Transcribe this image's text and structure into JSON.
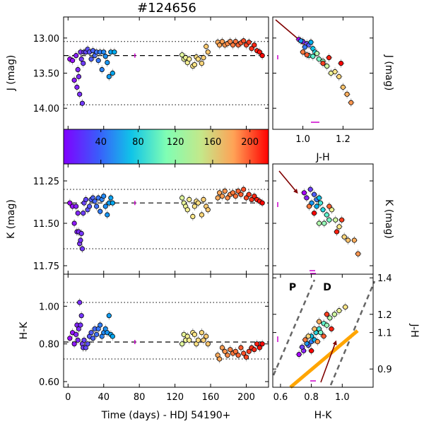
{
  "title": "#124656",
  "colorbar": {
    "ticks": [
      "40",
      "80",
      "120",
      "160",
      "200"
    ],
    "range": [
      0,
      220
    ],
    "cmap": "rainbow"
  },
  "chart_data": [
    {
      "id": "j_lc",
      "type": "scatter",
      "xlabel": "",
      "ylabel": "J (mag)",
      "xlim": [
        -5,
        225
      ],
      "ylim": [
        14.3,
        12.7
      ],
      "inverted_y": true,
      "yticks": [
        "13.00",
        "13.50",
        "14.00"
      ],
      "mean": 13.25,
      "bounds": [
        13.05,
        13.95
      ],
      "errorbar": {
        "x": 75,
        "y": 13.25
      },
      "points": [
        [
          2,
          13.3
        ],
        [
          5,
          13.32
        ],
        [
          7,
          13.6
        ],
        [
          9,
          13.25
        ],
        [
          10,
          13.7
        ],
        [
          11,
          13.45
        ],
        [
          12,
          13.55
        ],
        [
          13,
          13.8
        ],
        [
          14,
          13.2
        ],
        [
          15,
          13.3
        ],
        [
          16,
          13.93
        ],
        [
          17,
          13.36
        ],
        [
          18,
          13.2
        ],
        [
          20,
          13.2
        ],
        [
          22,
          13.16
        ],
        [
          24,
          13.2
        ],
        [
          26,
          13.3
        ],
        [
          28,
          13.18
        ],
        [
          30,
          13.25
        ],
        [
          32,
          13.2
        ],
        [
          34,
          13.32
        ],
        [
          36,
          13.2
        ],
        [
          38,
          13.45
        ],
        [
          40,
          13.2
        ],
        [
          42,
          13.26
        ],
        [
          44,
          13.35
        ],
        [
          46,
          13.55
        ],
        [
          48,
          13.2
        ],
        [
          50,
          13.5
        ],
        [
          52,
          13.2
        ],
        [
          128,
          13.24
        ],
        [
          130,
          13.3
        ],
        [
          132,
          13.28
        ],
        [
          134,
          13.35
        ],
        [
          136,
          13.3
        ],
        [
          140,
          13.4
        ],
        [
          142,
          13.38
        ],
        [
          144,
          13.27
        ],
        [
          146,
          13.3
        ],
        [
          150,
          13.36
        ],
        [
          152,
          13.28
        ],
        [
          155,
          13.12
        ],
        [
          157,
          13.2
        ],
        [
          168,
          13.06
        ],
        [
          170,
          13.1
        ],
        [
          173,
          13.05
        ],
        [
          176,
          13.1
        ],
        [
          179,
          13.08
        ],
        [
          182,
          13.05
        ],
        [
          185,
          13.1
        ],
        [
          188,
          13.05
        ],
        [
          191,
          13.1
        ],
        [
          194,
          13.07
        ],
        [
          197,
          13.04
        ],
        [
          200,
          13.1
        ],
        [
          203,
          13.06
        ],
        [
          206,
          13.15
        ],
        [
          209,
          13.1
        ],
        [
          212,
          13.18
        ],
        [
          215,
          13.2
        ],
        [
          218,
          13.25
        ]
      ]
    },
    {
      "id": "j_cmd",
      "type": "scatter",
      "xlabel": "J-H",
      "ylabel": "J (mag)",
      "xlim": [
        0.85,
        1.35
      ],
      "ylim": [
        14.3,
        12.7
      ],
      "inverted_y": true,
      "xticks": [
        "1.0",
        "1.2"
      ],
      "points": [
        [
          0.98,
          13.02
        ],
        [
          1.0,
          13.05
        ],
        [
          1.02,
          13.08
        ],
        [
          1.03,
          13.1
        ],
        [
          1.01,
          13.13
        ],
        [
          0.99,
          13.04
        ],
        [
          1.04,
          13.06
        ],
        [
          1.05,
          13.15
        ],
        [
          1.06,
          13.2
        ],
        [
          1.03,
          13.25
        ],
        [
          1.05,
          13.26
        ],
        [
          1.08,
          13.3
        ],
        [
          1.1,
          13.33
        ],
        [
          1.07,
          13.22
        ],
        [
          1.12,
          13.4
        ],
        [
          1.14,
          13.5
        ],
        [
          1.16,
          13.48
        ],
        [
          1.18,
          13.55
        ],
        [
          1.2,
          13.7
        ],
        [
          1.22,
          13.8
        ],
        [
          1.24,
          13.92
        ],
        [
          1.0,
          13.2
        ],
        [
          1.02,
          13.24
        ],
        [
          1.1,
          13.36
        ],
        [
          1.13,
          13.28
        ],
        [
          1.19,
          13.36
        ]
      ]
    },
    {
      "id": "k_lc",
      "type": "scatter",
      "xlabel": "",
      "ylabel": "K (mag)",
      "xlim": [
        -5,
        225
      ],
      "ylim": [
        11.8,
        11.15
      ],
      "inverted_y": true,
      "yticks": [
        "11.25",
        "11.50",
        "11.75"
      ],
      "mean": 11.38,
      "bounds": [
        11.3,
        11.65
      ],
      "errorbar": {
        "x": 75,
        "y": 11.38
      },
      "points": [
        [
          2,
          11.38
        ],
        [
          5,
          11.4
        ],
        [
          7,
          11.5
        ],
        [
          9,
          11.4
        ],
        [
          10,
          11.55
        ],
        [
          11,
          11.44
        ],
        [
          12,
          11.55
        ],
        [
          13,
          11.62
        ],
        [
          14,
          11.6
        ],
        [
          15,
          11.56
        ],
        [
          16,
          11.65
        ],
        [
          17,
          11.44
        ],
        [
          18,
          11.38
        ],
        [
          20,
          11.36
        ],
        [
          22,
          11.42
        ],
        [
          24,
          11.4
        ],
        [
          26,
          11.36
        ],
        [
          28,
          11.35
        ],
        [
          30,
          11.37
        ],
        [
          32,
          11.4
        ],
        [
          34,
          11.35
        ],
        [
          36,
          11.43
        ],
        [
          38,
          11.36
        ],
        [
          40,
          11.34
        ],
        [
          42,
          11.4
        ],
        [
          44,
          11.45
        ],
        [
          46,
          11.38
        ],
        [
          48,
          11.35
        ],
        [
          50,
          11.38
        ],
        [
          128,
          11.35
        ],
        [
          130,
          11.38
        ],
        [
          132,
          11.4
        ],
        [
          134,
          11.42
        ],
        [
          136,
          11.36
        ],
        [
          140,
          11.46
        ],
        [
          142,
          11.4
        ],
        [
          144,
          11.37
        ],
        [
          146,
          11.38
        ],
        [
          150,
          11.45
        ],
        [
          152,
          11.36
        ],
        [
          155,
          11.4
        ],
        [
          157,
          11.42
        ],
        [
          168,
          11.35
        ],
        [
          170,
          11.32
        ],
        [
          173,
          11.34
        ],
        [
          176,
          11.31
        ],
        [
          179,
          11.35
        ],
        [
          182,
          11.33
        ],
        [
          185,
          11.32
        ],
        [
          188,
          11.34
        ],
        [
          191,
          11.31
        ],
        [
          194,
          11.33
        ],
        [
          197,
          11.3
        ],
        [
          200,
          11.35
        ],
        [
          203,
          11.33
        ],
        [
          206,
          11.36
        ],
        [
          209,
          11.34
        ],
        [
          212,
          11.36
        ],
        [
          215,
          11.37
        ],
        [
          218,
          11.38
        ]
      ]
    },
    {
      "id": "k_cmd",
      "type": "scatter",
      "xlabel": "",
      "ylabel": "K (mag)",
      "xlim": [
        0.35,
        1.15
      ],
      "ylim": [
        11.8,
        11.15
      ],
      "inverted_y": true,
      "points": [
        [
          0.6,
          11.32
        ],
        [
          0.62,
          11.35
        ],
        [
          0.65,
          11.3
        ],
        [
          0.68,
          11.33
        ],
        [
          0.7,
          11.36
        ],
        [
          0.66,
          11.38
        ],
        [
          0.7,
          11.4
        ],
        [
          0.72,
          11.35
        ],
        [
          0.75,
          11.42
        ],
        [
          0.73,
          11.38
        ],
        [
          0.78,
          11.45
        ],
        [
          0.8,
          11.48
        ],
        [
          0.76,
          11.5
        ],
        [
          0.72,
          11.5
        ],
        [
          0.85,
          11.48
        ],
        [
          0.82,
          11.42
        ],
        [
          0.88,
          11.52
        ],
        [
          0.92,
          11.58
        ],
        [
          0.95,
          11.6
        ],
        [
          1.0,
          11.6
        ],
        [
          1.03,
          11.68
        ],
        [
          0.64,
          11.4
        ],
        [
          0.8,
          11.4
        ],
        [
          0.9,
          11.48
        ],
        [
          0.86,
          11.55
        ],
        [
          0.68,
          11.44
        ]
      ]
    },
    {
      "id": "hk_lc",
      "type": "scatter",
      "xlabel": "Time (days) - HDJ 54190+",
      "ylabel": "H-K",
      "xlim": [
        -5,
        225
      ],
      "ylim": [
        0.57,
        1.17
      ],
      "xticks": [
        "0",
        "40",
        "80",
        "120",
        "160",
        "200"
      ],
      "yticks": [
        "0.60",
        "0.80",
        "1.00"
      ],
      "mean": 0.81,
      "bounds": [
        0.72,
        1.02
      ],
      "errorbar": {
        "x": 75,
        "y": 0.81
      },
      "points": [
        [
          2,
          0.83
        ],
        [
          5,
          0.86
        ],
        [
          7,
          0.8
        ],
        [
          9,
          0.85
        ],
        [
          10,
          0.9
        ],
        [
          11,
          0.82
        ],
        [
          12,
          0.88
        ],
        [
          13,
          1.02
        ],
        [
          14,
          0.9
        ],
        [
          15,
          0.95
        ],
        [
          16,
          0.8
        ],
        [
          17,
          0.78
        ],
        [
          18,
          0.82
        ],
        [
          20,
          0.78
        ],
        [
          22,
          0.8
        ],
        [
          24,
          0.84
        ],
        [
          26,
          0.86
        ],
        [
          28,
          0.83
        ],
        [
          30,
          0.88
        ],
        [
          32,
          0.85
        ],
        [
          34,
          0.88
        ],
        [
          36,
          0.9
        ],
        [
          38,
          0.84
        ],
        [
          40,
          0.86
        ],
        [
          42,
          0.88
        ],
        [
          44,
          0.86
        ],
        [
          46,
          0.95
        ],
        [
          48,
          0.85
        ],
        [
          50,
          0.84
        ],
        [
          128,
          0.8
        ],
        [
          130,
          0.85
        ],
        [
          132,
          0.82
        ],
        [
          134,
          0.84
        ],
        [
          136,
          0.82
        ],
        [
          140,
          0.86
        ],
        [
          142,
          0.85
        ],
        [
          144,
          0.8
        ],
        [
          146,
          0.82
        ],
        [
          150,
          0.86
        ],
        [
          152,
          0.82
        ],
        [
          155,
          0.84
        ],
        [
          157,
          0.8
        ],
        [
          168,
          0.74
        ],
        [
          170,
          0.72
        ],
        [
          173,
          0.78
        ],
        [
          176,
          0.76
        ],
        [
          179,
          0.74
        ],
        [
          182,
          0.77
        ],
        [
          185,
          0.75
        ],
        [
          188,
          0.76
        ],
        [
          191,
          0.74
        ],
        [
          194,
          0.78
        ],
        [
          197,
          0.75
        ],
        [
          200,
          0.73
        ],
        [
          203,
          0.76
        ],
        [
          206,
          0.78
        ],
        [
          209,
          0.77
        ],
        [
          212,
          0.8
        ],
        [
          215,
          0.78
        ],
        [
          218,
          0.8
        ]
      ]
    },
    {
      "id": "cc",
      "type": "scatter",
      "xlabel": "H-K",
      "ylabel": "J-H",
      "xlim": [
        0.55,
        1.2
      ],
      "ylim": [
        0.8,
        1.42
      ],
      "xticks": [
        "0.6",
        "0.8",
        "1.0"
      ],
      "yticks": [
        "0.9",
        "1.1",
        "1.2",
        "1.4"
      ],
      "ytick_values": [
        0.9,
        1.1,
        1.2,
        1.4
      ],
      "region_labels": [
        "P",
        "D"
      ],
      "points": [
        [
          0.72,
          0.98
        ],
        [
          0.75,
          1.0
        ],
        [
          0.74,
          1.02
        ],
        [
          0.78,
          1.03
        ],
        [
          0.8,
          1.05
        ],
        [
          0.77,
          1.04
        ],
        [
          0.82,
          1.06
        ],
        [
          0.8,
          1.08
        ],
        [
          0.83,
          1.1
        ],
        [
          0.85,
          1.12
        ],
        [
          0.88,
          1.15
        ],
        [
          0.86,
          1.1
        ],
        [
          0.9,
          1.14
        ],
        [
          0.92,
          1.18
        ],
        [
          0.95,
          1.2
        ],
        [
          0.98,
          1.22
        ],
        [
          1.02,
          1.24
        ],
        [
          0.78,
          1.08
        ],
        [
          0.82,
          1.12
        ],
        [
          0.85,
          1.16
        ],
        [
          0.84,
          1.05
        ],
        [
          0.76,
          1.06
        ],
        [
          0.88,
          1.08
        ],
        [
          0.9,
          1.2
        ],
        [
          0.93,
          1.12
        ],
        [
          0.8,
          1.0
        ]
      ]
    }
  ]
}
